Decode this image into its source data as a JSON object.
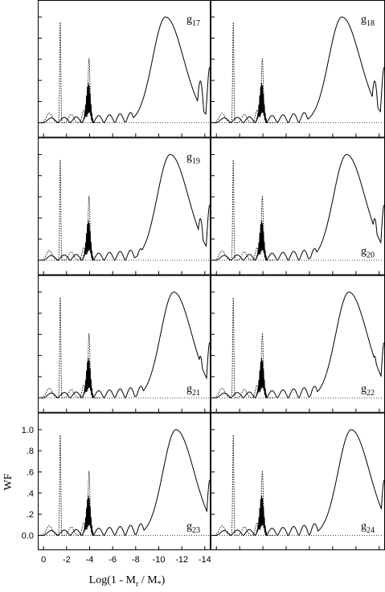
{
  "chart_data": {
    "type": "line",
    "layout": "grid of 8 panels, 4 rows x 2 columns",
    "xlabel": "Log(1 - M",
    "xlabel_sub": "r",
    "xlabel_rest": " / M",
    "xlabel_sub2": "*",
    "xlabel_end": ")",
    "ylabel": "WF",
    "x_axis_reversed": true,
    "xlim": [
      0.5,
      -14.5
    ],
    "ylim": [
      -0.08,
      1.1
    ],
    "xticks": [
      0,
      -2,
      -4,
      -6,
      -8,
      -10,
      -12,
      -14
    ],
    "xtick_labels": [
      "0",
      "-2",
      "-4",
      "-6",
      "-8",
      "-10",
      "-12",
      "-14"
    ],
    "yticks": [
      0.0,
      0.2,
      0.4,
      0.6,
      0.8,
      1.0
    ],
    "ytick_labels": [
      "0.0",
      ".2",
      ".4",
      ".6",
      ".8",
      "1.0"
    ],
    "grid": false,
    "series_styles": {
      "weight_function": "solid",
      "brunt_vaisala": "dotted"
    },
    "panels": [
      {
        "label": "g",
        "sub": "17",
        "label_pos": "top-right",
        "peak_x": -10.6
      },
      {
        "label": "g",
        "sub": "18",
        "label_pos": "top-right",
        "peak_x": -10.8
      },
      {
        "label": "g",
        "sub": "19",
        "label_pos": "top-right",
        "peak_x": -11.0
      },
      {
        "label": "g",
        "sub": "20",
        "label_pos": "bottom-right",
        "peak_x": -11.2
      },
      {
        "label": "g",
        "sub": "21",
        "label_pos": "bottom-right",
        "peak_x": -11.3
      },
      {
        "label": "g",
        "sub": "22",
        "label_pos": "bottom-right",
        "peak_x": -11.4
      },
      {
        "label": "g",
        "sub": "23",
        "label_pos": "bottom-right",
        "peak_x": -11.5
      },
      {
        "label": "g",
        "sub": "24",
        "label_pos": "bottom-right",
        "peak_x": -11.6
      }
    ]
  }
}
